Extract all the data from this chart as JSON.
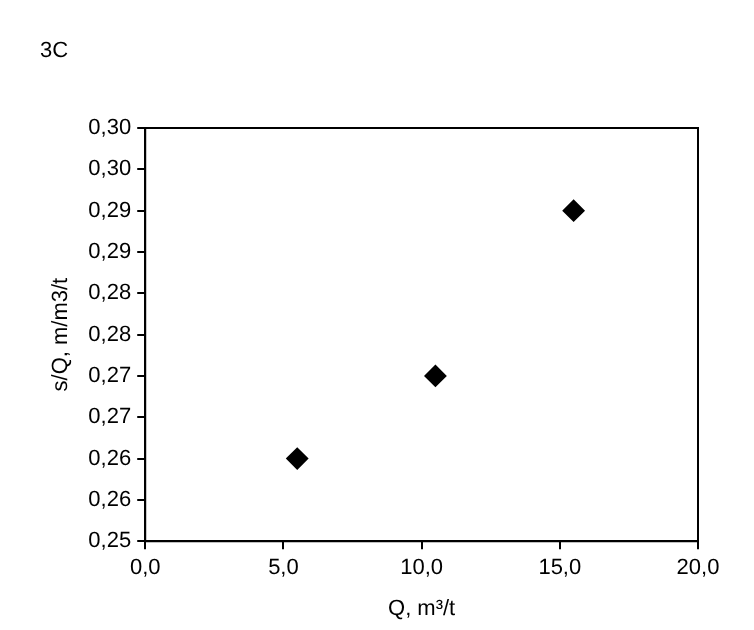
{
  "chart_data": {
    "type": "scatter",
    "annotations": [
      "3C"
    ],
    "xlabel": "Q, m³/t",
    "ylabel": "s/Q, m/m3/t",
    "x": [
      5.5,
      10.5,
      15.5
    ],
    "series": [
      {
        "color": "#000000",
        "values": [
          0.26,
          0.27,
          0.29
        ]
      }
    ],
    "xlim": [
      0,
      20
    ],
    "xticks": [
      {
        "value": 0,
        "label": "0,0"
      },
      {
        "value": 5,
        "label": "5,0"
      },
      {
        "value": 10,
        "label": "10,0"
      },
      {
        "value": 15,
        "label": "15,0"
      },
      {
        "value": 20,
        "label": "20,0"
      }
    ],
    "ylim": [
      0.25,
      0.3
    ],
    "yticks": [
      {
        "value": 0.25,
        "label": "0,25"
      },
      {
        "value": 0.255,
        "label": "0,26"
      },
      {
        "value": 0.26,
        "label": "0,26"
      },
      {
        "value": 0.265,
        "label": "0,27"
      },
      {
        "value": 0.27,
        "label": "0,27"
      },
      {
        "value": 0.275,
        "label": "0,28"
      },
      {
        "value": 0.28,
        "label": "0,28"
      },
      {
        "value": 0.285,
        "label": "0,29"
      },
      {
        "value": 0.29,
        "label": "0,29"
      },
      {
        "value": 0.295,
        "label": "0,30"
      },
      {
        "value": 0.3,
        "label": "0,30"
      }
    ],
    "grid": false,
    "legend": false,
    "marker": "diamond"
  }
}
